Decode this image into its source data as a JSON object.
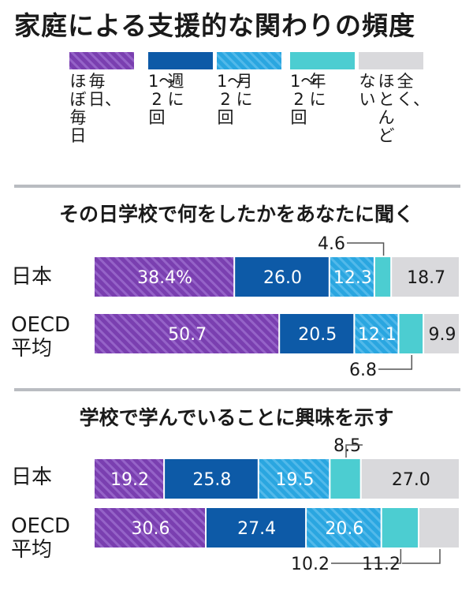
{
  "title": "家庭による支援的な関わりの頻度",
  "legend": [
    {
      "label": "ほぼ毎日、毎日",
      "columns": [
        "毎日、",
        "ほぼ毎日"
      ],
      "color": "#7a3fb0",
      "pattern": "stripe"
    },
    {
      "label": "週に1〜2回",
      "columns": [
        "週に",
        "1〜2回"
      ],
      "color": "#0d5aa7",
      "pattern": "solid"
    },
    {
      "label": "月に1〜2回",
      "columns": [
        "月に",
        "1〜2回"
      ],
      "color": "#2aa6e0",
      "pattern": "stripe"
    },
    {
      "label": "年に1〜2回",
      "columns": [
        "年に",
        "1〜2回"
      ],
      "color": "#4ccdd1",
      "pattern": "solid"
    },
    {
      "label": "全く、ほとんどない",
      "columns": [
        "全く、",
        "ほとんど",
        "ない"
      ],
      "color": "#d9d9dc",
      "pattern": "solid"
    }
  ],
  "chart_data": [
    {
      "type": "bar",
      "orientation": "horizontal",
      "stacked": true,
      "title": "その日学校で何をしたかをあなたに聞く",
      "categories": [
        "日本",
        "OECD平均"
      ],
      "series": [
        {
          "name": "ほぼ毎日、毎日",
          "values": [
            38.4,
            50.7
          ]
        },
        {
          "name": "週に1〜2回",
          "values": [
            26.0,
            20.5
          ]
        },
        {
          "name": "月に1〜2回",
          "values": [
            12.3,
            12.1
          ]
        },
        {
          "name": "年に1〜2回",
          "values": [
            4.6,
            6.8
          ]
        },
        {
          "name": "全く、ほとんどない",
          "values": [
            18.7,
            9.9
          ]
        }
      ],
      "labels": [
        [
          "38.4%",
          "26.0",
          "12.3",
          "4.6",
          "18.7"
        ],
        [
          "50.7",
          "20.5",
          "12.1",
          "6.8",
          "9.9"
        ]
      ],
      "unit": "%"
    },
    {
      "type": "bar",
      "orientation": "horizontal",
      "stacked": true,
      "title": "学校で学んでいることに興味を示す",
      "categories": [
        "日本",
        "OECD平均"
      ],
      "series": [
        {
          "name": "ほぼ毎日、毎日",
          "values": [
            19.2,
            30.6
          ]
        },
        {
          "name": "週に1〜2回",
          "values": [
            25.8,
            27.4
          ]
        },
        {
          "name": "月に1〜2回",
          "values": [
            19.5,
            20.6
          ]
        },
        {
          "name": "年に1〜2回",
          "values": [
            8.5,
            10.2
          ]
        },
        {
          "name": "全く、ほとんどない",
          "values": [
            27.0,
            11.2
          ]
        }
      ],
      "labels": [
        [
          "19.2",
          "25.8",
          "19.5",
          "8.5",
          "27.0"
        ],
        [
          "30.6",
          "27.4",
          "20.6",
          "10.2",
          "11.2"
        ]
      ],
      "unit": "%"
    }
  ]
}
